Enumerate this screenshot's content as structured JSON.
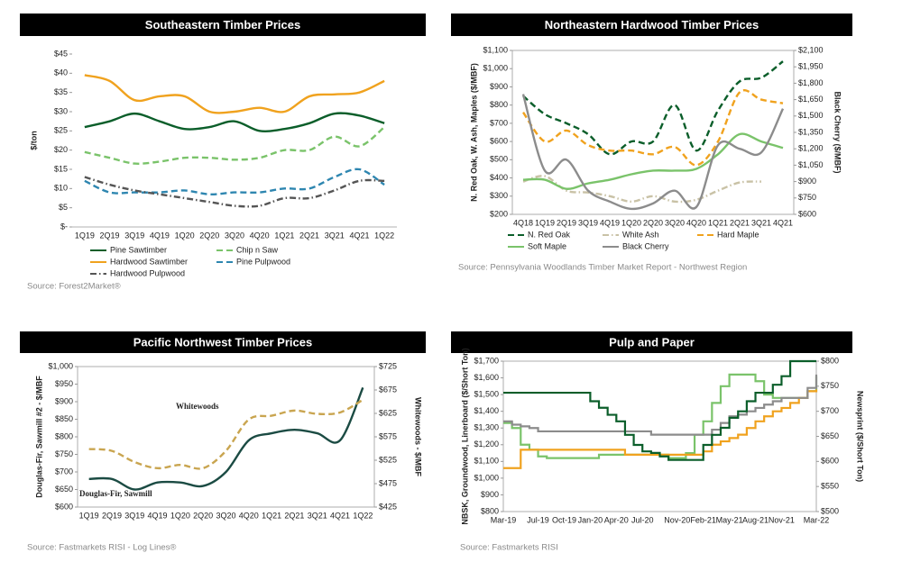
{
  "chart_data": [
    {
      "type": "line",
      "title": "Southeastern Timber Prices",
      "ylabel": "$/ton",
      "source": "Source: Forest2Market®",
      "line_style": "smooth",
      "legend": "bottom",
      "grid": false,
      "categories": [
        "1Q19",
        "2Q19",
        "3Q19",
        "4Q19",
        "1Q20",
        "2Q20",
        "3Q20",
        "4Q20",
        "1Q21",
        "2Q21",
        "3Q21",
        "4Q21",
        "1Q22"
      ],
      "ylim": [
        0,
        45
      ],
      "yticks": [
        {
          "value": 0,
          "label": "$-"
        },
        {
          "value": 5,
          "label": "$5"
        },
        {
          "value": 10,
          "label": "$10"
        },
        {
          "value": 15,
          "label": "$15"
        },
        {
          "value": 20,
          "label": "$20"
        },
        {
          "value": 25,
          "label": "$25"
        },
        {
          "value": 30,
          "label": "$30"
        },
        {
          "value": 35,
          "label": "$35"
        },
        {
          "value": 40,
          "label": "$40"
        },
        {
          "value": 45,
          "label": "$45"
        }
      ],
      "series": [
        {
          "name": "Pine Sawtimber",
          "color": "#0b5e2a",
          "dash": "solid",
          "values": [
            26,
            27.5,
            29.5,
            27.5,
            25.5,
            26,
            27.5,
            25,
            25.5,
            27,
            29.5,
            29,
            27
          ]
        },
        {
          "name": "Chip n Saw",
          "color": "#7ac36a",
          "dash": "dashed",
          "values": [
            19.5,
            18,
            16.5,
            17,
            18,
            18,
            17.5,
            18,
            20,
            20,
            23.5,
            21,
            26
          ]
        },
        {
          "name": "Hardwood Sawtimber",
          "color": "#f0a21e",
          "dash": "solid",
          "values": [
            39.5,
            38,
            33,
            34,
            34,
            30,
            30,
            31,
            30,
            34,
            34.5,
            35,
            38
          ]
        },
        {
          "name": "Pine Pulpwood",
          "color": "#2e86b0",
          "dash": "dashed",
          "values": [
            12,
            9,
            9,
            9,
            9.5,
            8.5,
            9,
            9,
            10,
            10,
            13,
            15,
            11
          ]
        },
        {
          "name": "Hardwood Pulpwood",
          "color": "#555555",
          "dash": "dashdot",
          "values": [
            13,
            11,
            9.5,
            8.5,
            7.5,
            6.5,
            5.5,
            5.5,
            7.5,
            7.5,
            9.5,
            12,
            12
          ]
        }
      ]
    },
    {
      "type": "line",
      "title": "Northeastern Hardwood Timber Prices",
      "ylabel": "N. Red Oak, W. Ash, Maples ($/MBF)",
      "y2label": "Black Cherry ($/MBF)",
      "source": "Source: Pennsylvania Woodlands Timber Market Report - Northwest Region",
      "line_style": "smooth",
      "legend": "bottom",
      "grid": false,
      "categories": [
        "4Q18",
        "1Q19",
        "2Q19",
        "3Q19",
        "4Q19",
        "1Q20",
        "2Q20",
        "3Q20",
        "4Q20",
        "1Q21",
        "2Q21",
        "3Q21",
        "4Q21"
      ],
      "ylim": [
        200,
        1100
      ],
      "yticks": [
        {
          "value": 200,
          "label": "$200"
        },
        {
          "value": 300,
          "label": "$300"
        },
        {
          "value": 400,
          "label": "$400"
        },
        {
          "value": 500,
          "label": "$500"
        },
        {
          "value": 600,
          "label": "$600"
        },
        {
          "value": 700,
          "label": "$700"
        },
        {
          "value": 800,
          "label": "$800"
        },
        {
          "value": 900,
          "label": "$900"
        },
        {
          "value": 1000,
          "label": "$1,000"
        },
        {
          "value": 1100,
          "label": "$1,100"
        }
      ],
      "y2lim": [
        600,
        2100
      ],
      "y2ticks": [
        {
          "value": 600,
          "label": "$600"
        },
        {
          "value": 750,
          "label": "$750"
        },
        {
          "value": 900,
          "label": "$900"
        },
        {
          "value": 1050,
          "label": "$1,050"
        },
        {
          "value": 1200,
          "label": "$1,200"
        },
        {
          "value": 1350,
          "label": "$1,350"
        },
        {
          "value": 1500,
          "label": "$1,500"
        },
        {
          "value": 1650,
          "label": "$1,650"
        },
        {
          "value": 1800,
          "label": "$1,800"
        },
        {
          "value": 1950,
          "label": "$1,950"
        },
        {
          "value": 2100,
          "label": "$2,100"
        }
      ],
      "series": [
        {
          "name": "N. Red Oak",
          "color": "#0b5e2a",
          "dash": "dashed",
          "values": [
            850,
            750,
            700,
            640,
            530,
            600,
            600,
            800,
            550,
            770,
            930,
            950,
            1040
          ]
        },
        {
          "name": "White Ash",
          "color": "#c9c2a6",
          "dash": "dashdot",
          "values": [
            380,
            410,
            330,
            320,
            300,
            270,
            300,
            270,
            280,
            330,
            375,
            380,
            null
          ]
        },
        {
          "name": "Hard Maple",
          "color": "#f0a21e",
          "dash": "dashed",
          "values": [
            760,
            600,
            660,
            580,
            550,
            550,
            530,
            570,
            470,
            600,
            870,
            830,
            810
          ]
        },
        {
          "name": "Soft Maple",
          "color": "#7ac36a",
          "dash": "solid",
          "values": [
            390,
            390,
            340,
            370,
            390,
            420,
            440,
            440,
            450,
            530,
            640,
            600,
            565
          ]
        },
        {
          "name": "Black Cherry",
          "color": "#8c8c8c",
          "dash": "solid",
          "axis": "y2",
          "values": [
            1700,
            1000,
            1100,
            817,
            717,
            650,
            700,
            817,
            667,
            1233,
            1200,
            1167,
            1567
          ]
        }
      ]
    },
    {
      "type": "line",
      "title": "Pacific Northwest Timber Prices",
      "ylabel": "Douglas-Fir, Sawmill #2 - $/MBF",
      "y2label": "Whitewoods - $/MBF",
      "source": "Source: Fastmarkets RISI - Log Lines®",
      "line_style": "smooth",
      "legend": "inline",
      "grid": false,
      "categories": [
        "1Q19",
        "2Q19",
        "3Q19",
        "4Q19",
        "1Q20",
        "2Q20",
        "3Q20",
        "4Q20",
        "1Q21",
        "2Q21",
        "3Q21",
        "4Q21",
        "1Q22"
      ],
      "ylim": [
        600,
        1000
      ],
      "yticks": [
        {
          "value": 600,
          "label": "$600"
        },
        {
          "value": 650,
          "label": "$650"
        },
        {
          "value": 700,
          "label": "$700"
        },
        {
          "value": 750,
          "label": "$750"
        },
        {
          "value": 800,
          "label": "$800"
        },
        {
          "value": 850,
          "label": "$850"
        },
        {
          "value": 900,
          "label": "$900"
        },
        {
          "value": 950,
          "label": "$950"
        },
        {
          "value": 1000,
          "label": "$1,000"
        }
      ],
      "y2lim": [
        425,
        725
      ],
      "y2ticks": [
        {
          "value": 425,
          "label": "$425"
        },
        {
          "value": 475,
          "label": "$475"
        },
        {
          "value": 525,
          "label": "$525"
        },
        {
          "value": 575,
          "label": "$575"
        },
        {
          "value": 625,
          "label": "$625"
        },
        {
          "value": 675,
          "label": "$675"
        },
        {
          "value": 725,
          "label": "$725"
        }
      ],
      "series": [
        {
          "name": "Douglas-Fir, Sawmill",
          "color": "#1b4b43",
          "dash": "solid",
          "values": [
            680,
            680,
            650,
            670,
            670,
            660,
            700,
            790,
            810,
            820,
            810,
            790,
            940
          ]
        },
        {
          "name": "Whitewoods",
          "color": "#c9a550",
          "dash": "dashed",
          "axis": "y2",
          "values": [
            549,
            545,
            521,
            508,
            515,
            508,
            545,
            612,
            620,
            631,
            624,
            627,
            654
          ]
        }
      ]
    },
    {
      "type": "line",
      "title": "Pulp and Paper",
      "ylabel": "NBSK, Groundwood, Linerboard ($/Short Ton)",
      "y2label": "Newsprint ($/Short Ton)",
      "source": "Source: Fastmarkets RISI",
      "line_style": "step",
      "grid": false,
      "categories": [
        "Mar-19",
        null,
        null,
        null,
        "Jul-19",
        null,
        null,
        "Oct-19",
        null,
        null,
        "Jan-20",
        null,
        null,
        "Apr-20",
        null,
        null,
        "Jul-20",
        null,
        null,
        null,
        "Nov-20",
        null,
        null,
        "Feb-21",
        null,
        null,
        "May-21",
        null,
        null,
        "Aug-21",
        null,
        null,
        "Nov-21",
        null,
        null,
        null,
        "Mar-22"
      ],
      "ylim": [
        800,
        1700
      ],
      "yticks": [
        {
          "value": 800,
          "label": "$800"
        },
        {
          "value": 900,
          "label": "$900"
        },
        {
          "value": 1000,
          "label": "$1,000"
        },
        {
          "value": 1100,
          "label": "$1,100"
        },
        {
          "value": 1200,
          "label": "$1,200"
        },
        {
          "value": 1300,
          "label": "$1,300"
        },
        {
          "value": 1400,
          "label": "$1,400"
        },
        {
          "value": 1500,
          "label": "$1,500"
        },
        {
          "value": 1600,
          "label": "$1,600"
        },
        {
          "value": 1700,
          "label": "$1,700"
        }
      ],
      "y2lim": [
        500,
        800
      ],
      "y2ticks": [
        {
          "value": 500,
          "label": "$500"
        },
        {
          "value": 550,
          "label": "$550"
        },
        {
          "value": 600,
          "label": "$600"
        },
        {
          "value": 650,
          "label": "$650"
        },
        {
          "value": 700,
          "label": "$700"
        },
        {
          "value": 750,
          "label": "$750"
        },
        {
          "value": 800,
          "label": "$800"
        }
      ],
      "series": [
        {
          "color": "#7ac36a",
          "dash": "solid",
          "values": [
            1330,
            1300,
            1200,
            1170,
            1130,
            1120,
            1120,
            1120,
            1120,
            1120,
            1120,
            1140,
            1140,
            1140,
            1140,
            1140,
            1140,
            1140,
            1140,
            1120,
            1120,
            1150,
            1260,
            1340,
            1450,
            1550,
            1620,
            1620,
            1620,
            1580,
            1500,
            1480,
            1480,
            1480,
            1480,
            1520,
            1610
          ]
        },
        {
          "color": "#f0a21e",
          "dash": "solid",
          "values": [
            1060,
            1060,
            1170,
            1170,
            1170,
            1170,
            1170,
            1170,
            1170,
            1170,
            1170,
            1170,
            1170,
            1170,
            1140,
            1140,
            1140,
            1140,
            1140,
            1140,
            1140,
            1140,
            1140,
            1160,
            1200,
            1220,
            1240,
            1260,
            1300,
            1340,
            1370,
            1400,
            1420,
            1450,
            1480,
            1520,
            1530
          ]
        },
        {
          "color": "#8c8c8c",
          "dash": "solid",
          "values": [
            1340,
            1320,
            1310,
            1300,
            1280,
            1280,
            1280,
            1280,
            1280,
            1280,
            1280,
            1280,
            1280,
            1280,
            1280,
            1280,
            1280,
            1260,
            1260,
            1260,
            1260,
            1260,
            1260,
            1260,
            1290,
            1330,
            1370,
            1380,
            1400,
            1420,
            1440,
            1460,
            1480,
            1480,
            1480,
            1540,
            1620
          ]
        },
        {
          "color": "#0b5e2a",
          "dash": "solid",
          "axis": "y2",
          "values": [
            737,
            737,
            737,
            737,
            737,
            737,
            737,
            737,
            737,
            737,
            720,
            707,
            693,
            680,
            653,
            633,
            620,
            617,
            610,
            603,
            603,
            603,
            603,
            633,
            653,
            667,
            687,
            700,
            720,
            737,
            737,
            753,
            770,
            800,
            800,
            800,
            800
          ]
        }
      ]
    }
  ]
}
